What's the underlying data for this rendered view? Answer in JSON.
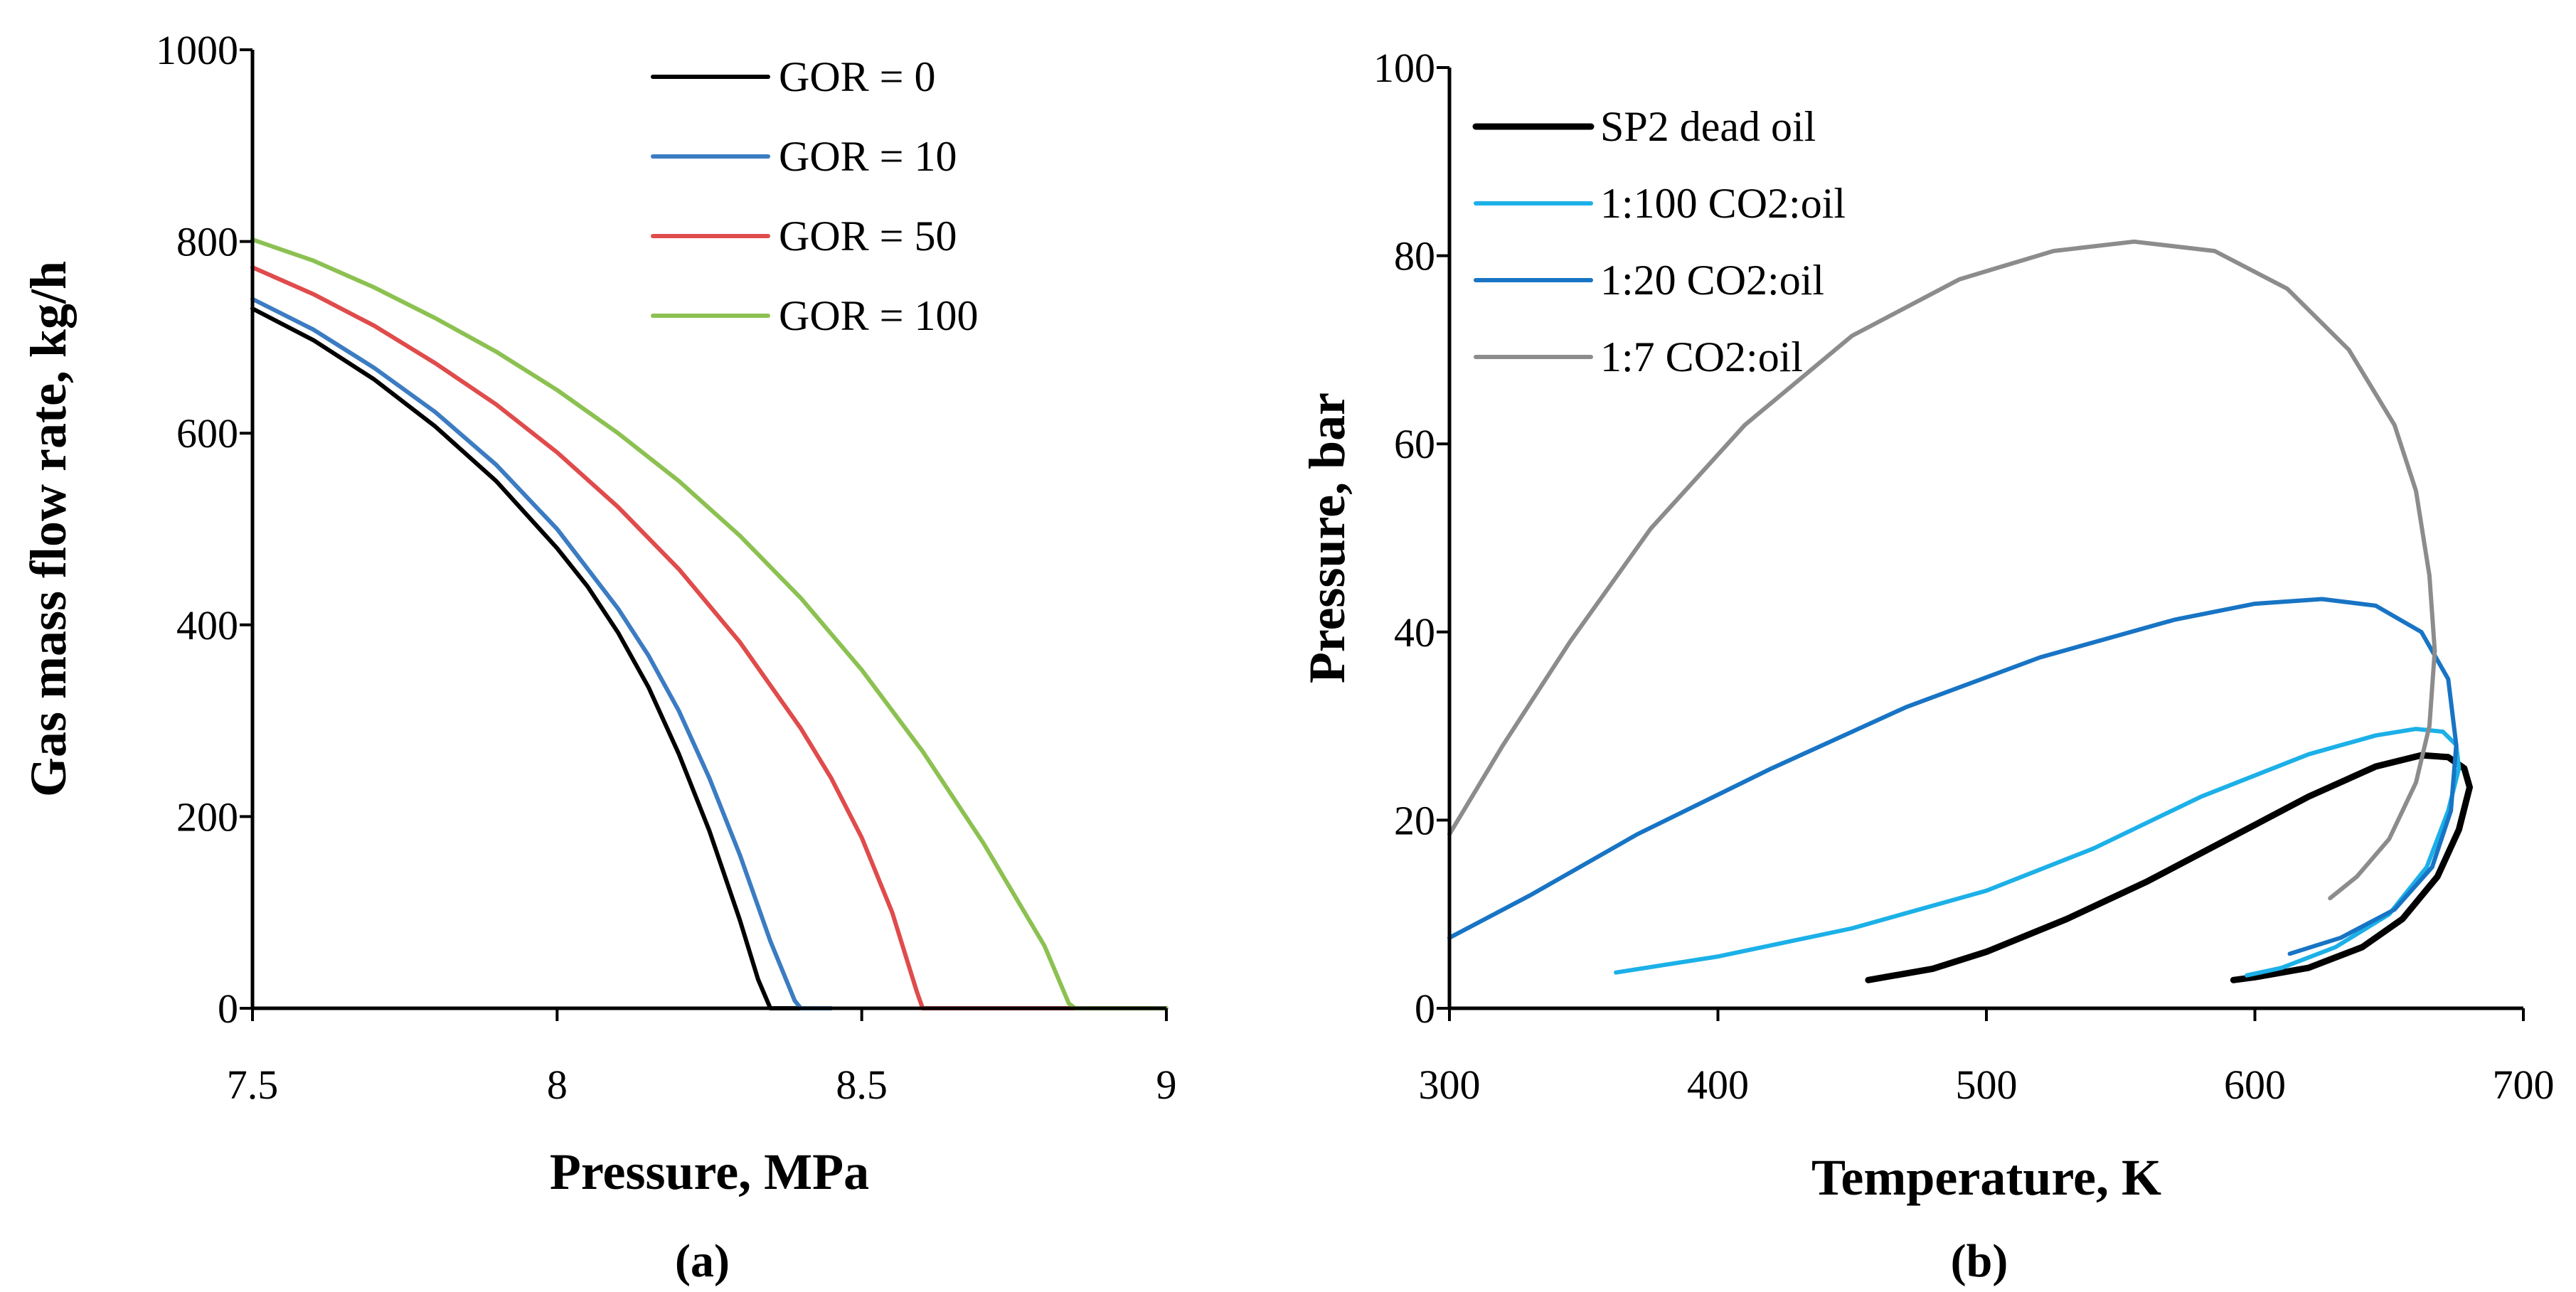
{
  "chart_data": [
    {
      "type": "line",
      "panel_label": "(a)",
      "xlabel": "Pressure, MPa",
      "ylabel": "Gas  mass flow rate, kg/h",
      "xlim": [
        7.5,
        9
      ],
      "ylim": [
        0,
        1000
      ],
      "xticks": [
        7.5,
        8,
        8.5,
        9
      ],
      "xtick_labels": [
        "7.5",
        "8",
        "8.5",
        "9"
      ],
      "yticks": [
        0,
        200,
        400,
        600,
        800,
        1000
      ],
      "ytick_labels": [
        "0",
        "200",
        "400",
        "600",
        "800",
        "1000"
      ],
      "grid": false,
      "legend_position": "top-right",
      "series": [
        {
          "name": "GOR = 0",
          "color": "#000000",
          "points": [
            [
              7.5,
              730
            ],
            [
              7.6,
              697
            ],
            [
              7.7,
              656
            ],
            [
              7.8,
              607
            ],
            [
              7.9,
              550
            ],
            [
              8.0,
              480
            ],
            [
              8.05,
              440
            ],
            [
              8.1,
              392
            ],
            [
              8.15,
              335
            ],
            [
              8.2,
              265
            ],
            [
              8.25,
              185
            ],
            [
              8.3,
              92
            ],
            [
              8.33,
              30
            ],
            [
              8.35,
              0
            ],
            [
              8.4,
              0
            ]
          ]
        },
        {
          "name": "GOR = 10",
          "color": "#3B7CC2",
          "points": [
            [
              7.5,
              740
            ],
            [
              7.6,
              708
            ],
            [
              7.7,
              668
            ],
            [
              7.8,
              622
            ],
            [
              7.9,
              567
            ],
            [
              8.0,
              500
            ],
            [
              8.1,
              417
            ],
            [
              8.15,
              368
            ],
            [
              8.2,
              310
            ],
            [
              8.25,
              240
            ],
            [
              8.3,
              160
            ],
            [
              8.35,
              70
            ],
            [
              8.39,
              8
            ],
            [
              8.4,
              0
            ],
            [
              8.45,
              0
            ]
          ]
        },
        {
          "name": "GOR = 50",
          "color": "#E04B4B",
          "points": [
            [
              7.5,
              773
            ],
            [
              7.6,
              745
            ],
            [
              7.7,
              712
            ],
            [
              7.8,
              673
            ],
            [
              7.9,
              630
            ],
            [
              8.0,
              580
            ],
            [
              8.1,
              523
            ],
            [
              8.2,
              458
            ],
            [
              8.3,
              382
            ],
            [
              8.4,
              292
            ],
            [
              8.45,
              240
            ],
            [
              8.5,
              178
            ],
            [
              8.55,
              100
            ],
            [
              8.59,
              18
            ],
            [
              8.6,
              0
            ],
            [
              8.65,
              0
            ],
            [
              8.7,
              0
            ],
            [
              8.8,
              0
            ],
            [
              8.87,
              0
            ]
          ]
        },
        {
          "name": "GOR = 100",
          "color": "#8CC152",
          "points": [
            [
              7.5,
              802
            ],
            [
              7.6,
              780
            ],
            [
              7.7,
              752
            ],
            [
              7.8,
              720
            ],
            [
              7.9,
              685
            ],
            [
              8.0,
              645
            ],
            [
              8.1,
              600
            ],
            [
              8.2,
              550
            ],
            [
              8.3,
              493
            ],
            [
              8.4,
              428
            ],
            [
              8.5,
              353
            ],
            [
              8.6,
              268
            ],
            [
              8.7,
              172
            ],
            [
              8.8,
              65
            ],
            [
              8.84,
              5
            ],
            [
              8.85,
              0
            ],
            [
              8.9,
              0
            ],
            [
              9.0,
              0
            ]
          ]
        }
      ]
    },
    {
      "type": "line",
      "panel_label": "(b)",
      "xlabel": "Temperature, K",
      "ylabel": "Pressure, bar",
      "xlim": [
        300,
        700
      ],
      "ylim": [
        0,
        100
      ],
      "xticks": [
        300,
        400,
        500,
        600,
        700
      ],
      "xtick_labels": [
        "300",
        "400",
        "500",
        "600",
        "700"
      ],
      "yticks": [
        0,
        20,
        40,
        60,
        80,
        100
      ],
      "ytick_labels": [
        "0",
        "20",
        "40",
        "60",
        "80",
        "100"
      ],
      "grid": false,
      "legend_position": "top-left",
      "series": [
        {
          "name": "SP2 dead oil",
          "color": "#000000",
          "width": 9,
          "points": [
            [
              456,
              3.0
            ],
            [
              480,
              4.2
            ],
            [
              500,
              6.0
            ],
            [
              530,
              9.5
            ],
            [
              560,
              13.5
            ],
            [
              590,
              18.0
            ],
            [
              620,
              22.5
            ],
            [
              645,
              25.7
            ],
            [
              662,
              26.9
            ],
            [
              672,
              26.7
            ],
            [
              678,
              25.5
            ],
            [
              680,
              23.5
            ],
            [
              676,
              19.0
            ],
            [
              668,
              14.0
            ],
            [
              655,
              9.5
            ],
            [
              640,
              6.5
            ],
            [
              620,
              4.3
            ],
            [
              600,
              3.3
            ],
            [
              592,
              3.0
            ]
          ]
        },
        {
          "name": "1:100 CO2:oil",
          "color": "#1CB0E8",
          "width": 6,
          "points": [
            [
              362,
              3.8
            ],
            [
              400,
              5.5
            ],
            [
              450,
              8.5
            ],
            [
              500,
              12.5
            ],
            [
              540,
              17.0
            ],
            [
              580,
              22.5
            ],
            [
              620,
              27.0
            ],
            [
              645,
              29.0
            ],
            [
              660,
              29.7
            ],
            [
              670,
              29.4
            ],
            [
              675,
              28.0
            ],
            [
              676,
              25.5
            ],
            [
              672,
              21.0
            ],
            [
              664,
              15.0
            ],
            [
              650,
              10.0
            ],
            [
              630,
              6.5
            ],
            [
              610,
              4.3
            ],
            [
              597,
              3.5
            ]
          ]
        },
        {
          "name": "1:20 CO2:oil",
          "color": "#1874C4",
          "width": 6,
          "points": [
            [
              300,
              7.5
            ],
            [
              330,
              12.0
            ],
            [
              370,
              18.5
            ],
            [
              420,
              25.5
            ],
            [
              470,
              32.0
            ],
            [
              520,
              37.3
            ],
            [
              570,
              41.3
            ],
            [
              600,
              43.0
            ],
            [
              625,
              43.5
            ],
            [
              645,
              42.8
            ],
            [
              662,
              40.0
            ],
            [
              672,
              35.0
            ],
            [
              675,
              28.0
            ],
            [
              673,
              21.0
            ],
            [
              666,
              15.0
            ],
            [
              652,
              10.5
            ],
            [
              632,
              7.5
            ],
            [
              613,
              5.8
            ]
          ]
        },
        {
          "name": "1:7 CO2:oil",
          "color": "#8C8C8C",
          "width": 6,
          "points": [
            [
              300,
              18.5
            ],
            [
              320,
              28.0
            ],
            [
              345,
              39.0
            ],
            [
              375,
              51.0
            ],
            [
              410,
              62.0
            ],
            [
              450,
              71.5
            ],
            [
              490,
              77.5
            ],
            [
              525,
              80.5
            ],
            [
              555,
              81.5
            ],
            [
              585,
              80.5
            ],
            [
              612,
              76.5
            ],
            [
              635,
              70.0
            ],
            [
              652,
              62.0
            ],
            [
              660,
              55.0
            ],
            [
              665,
              46.0
            ],
            [
              667,
              38.0
            ],
            [
              665,
              30.0
            ],
            [
              660,
              24.0
            ],
            [
              650,
              18.0
            ],
            [
              638,
              14.0
            ],
            [
              628,
              11.7
            ]
          ]
        }
      ]
    }
  ]
}
